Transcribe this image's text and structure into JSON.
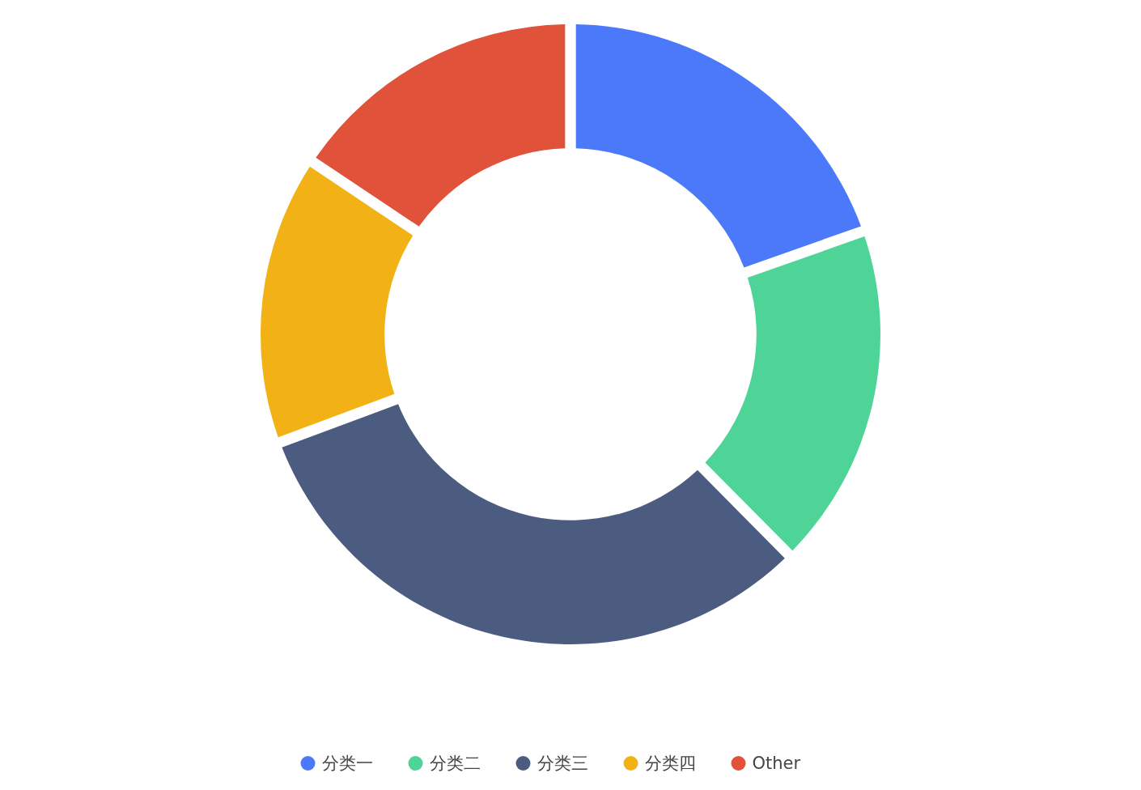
{
  "chart_data": {
    "type": "donut",
    "categories": [
      "分类一",
      "分类二",
      "分类三",
      "分类四",
      "Other"
    ],
    "values": [
      19.6,
      17.9,
      32.1,
      14.9,
      15.5
    ],
    "colors": [
      "#4b79f9",
      "#4fd498",
      "#4c5c81",
      "#f2b216",
      "#e0523a"
    ],
    "legend": "bottom"
  }
}
